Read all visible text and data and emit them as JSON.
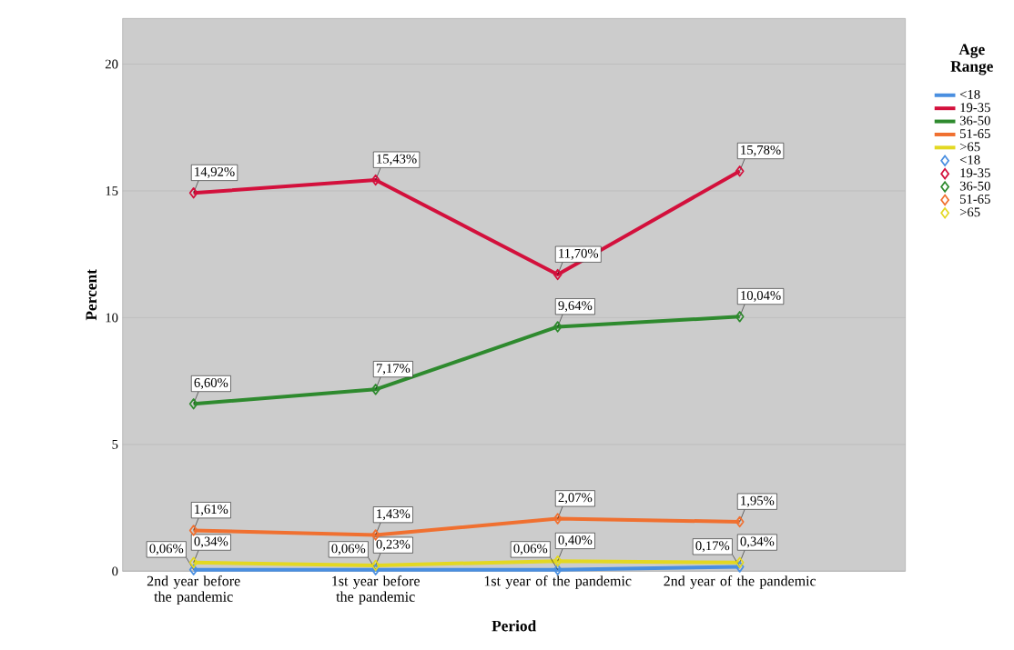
{
  "chart_data": {
    "type": "line",
    "xlabel": "Period",
    "ylabel": "Percent",
    "legend_title": "Age Range",
    "categories": [
      "2nd year before the pandemic",
      "1st year before the pandemic",
      "1st year of the pandemic",
      "2nd year of the pandemic"
    ],
    "series": [
      {
        "name": "<18",
        "color": "#4a8fe0",
        "values": [
          0.06,
          0.06,
          0.06,
          0.17
        ],
        "value_labels": [
          "0,06%",
          "0,06%",
          "0,06%",
          "0,17%"
        ]
      },
      {
        "name": "19-35",
        "color": "#d3103c",
        "values": [
          14.92,
          15.43,
          11.7,
          15.78
        ],
        "value_labels": [
          "14,92%",
          "15,43%",
          "11,70%",
          "15,78%"
        ]
      },
      {
        "name": "36-50",
        "color": "#2e8a2e",
        "values": [
          6.6,
          7.17,
          9.64,
          10.04
        ],
        "value_labels": [
          "6,60%",
          "7,17%",
          "9,64%",
          "10,04%"
        ]
      },
      {
        "name": "51-65",
        "color": "#f07030",
        "values": [
          1.61,
          1.43,
          2.07,
          1.95
        ],
        "value_labels": [
          "1,61%",
          "1,43%",
          "2,07%",
          "1,95%"
        ]
      },
      {
        "name": ">65",
        "color": "#e3d822",
        "values": [
          0.34,
          0.23,
          0.4,
          0.34
        ],
        "value_labels": [
          "0,34%",
          "0,23%",
          "0,40%",
          "0,34%"
        ]
      }
    ],
    "ylim": [
      0,
      21.8
    ],
    "yticks": [
      0,
      5,
      10,
      15,
      20
    ],
    "grid": "y",
    "legend": "right",
    "marker": "diamond",
    "line_style": "solid"
  }
}
